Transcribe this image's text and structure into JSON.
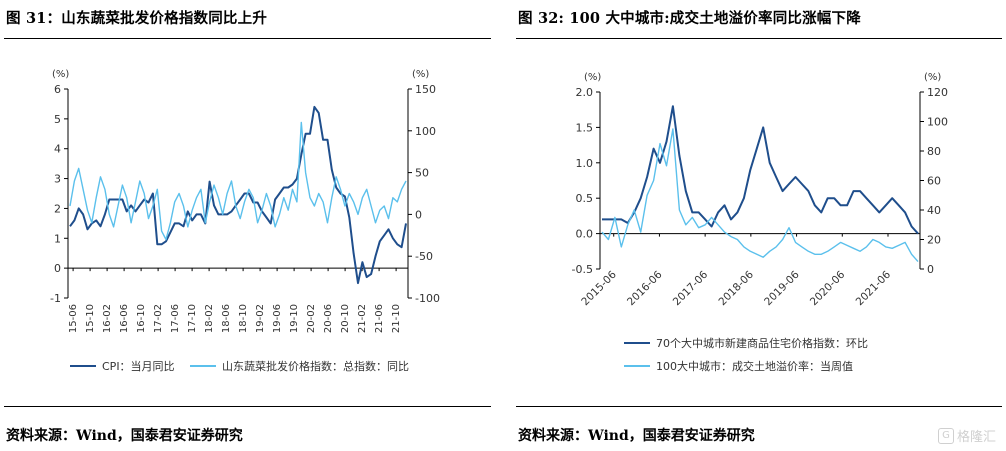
{
  "left": {
    "figure_title": "图 31：山东蔬菜批发价格指数同比上升",
    "source": "资料来源：Wind，国泰君安证券研究"
  },
  "right": {
    "figure_title": "图 32: 100 大中城市:成交土地溢价率同比涨幅下降",
    "source": "资料来源：Wind，国泰君安证券研究"
  },
  "watermark": {
    "text": "格隆汇",
    "icon": "gelonghui-logo-icon"
  },
  "colors": {
    "dark_series": "#1f4e8c",
    "light_series": "#5bc0ec"
  },
  "chart_data": [
    {
      "type": "line",
      "left_axis": {
        "unit": "(%)",
        "ylim": [
          -1,
          6
        ],
        "ticks": [
          "-1",
          "0",
          "1",
          "2",
          "3",
          "4",
          "5",
          "6"
        ]
      },
      "right_axis": {
        "unit": "(%)",
        "ylim": [
          -100,
          150
        ],
        "ticks": [
          "-100",
          "-50",
          "0",
          "50",
          "100",
          "150"
        ]
      },
      "x_ticks": [
        "15-06",
        "15-10",
        "16-02",
        "16-06",
        "16-10",
        "17-02",
        "17-06",
        "17-10",
        "18-02",
        "18-06",
        "18-10",
        "19-02",
        "19-06",
        "19-10",
        "20-02",
        "20-06",
        "20-10",
        "21-02",
        "21-06",
        "21-10"
      ],
      "series": [
        {
          "name": "CPI：当月同比",
          "axis": "left",
          "color": "#1f4e8c",
          "values": [
            1.4,
            1.6,
            2.0,
            1.8,
            1.3,
            1.5,
            1.6,
            1.4,
            1.8,
            2.3,
            2.3,
            2.3,
            2.3,
            1.9,
            2.1,
            1.9,
            2.1,
            2.3,
            2.2,
            2.5,
            0.8,
            0.8,
            0.9,
            1.2,
            1.5,
            1.5,
            1.4,
            1.9,
            1.6,
            1.8,
            1.8,
            1.5,
            2.9,
            2.1,
            1.8,
            1.8,
            1.8,
            1.9,
            2.1,
            2.3,
            2.5,
            2.5,
            2.2,
            2.2,
            1.9,
            1.7,
            1.5,
            2.3,
            2.5,
            2.7,
            2.7,
            2.8,
            3.0,
            3.8,
            4.5,
            4.5,
            5.4,
            5.2,
            4.3,
            4.3,
            3.3,
            2.7,
            2.5,
            2.4,
            1.7,
            0.5,
            -0.5,
            0.2,
            -0.3,
            -0.2,
            0.4,
            0.9,
            1.1,
            1.3,
            1.0,
            0.8,
            0.7,
            1.5
          ]
        },
        {
          "name": "山东蔬菜批发价格指数：总指数：同比",
          "axis": "right",
          "color": "#5bc0ec",
          "values": [
            10,
            40,
            55,
            30,
            5,
            -10,
            20,
            45,
            30,
            0,
            -15,
            10,
            35,
            20,
            -10,
            15,
            40,
            25,
            -5,
            10,
            30,
            -20,
            -30,
            -10,
            15,
            25,
            10,
            -15,
            5,
            20,
            30,
            -10,
            15,
            35,
            20,
            0,
            25,
            40,
            10,
            -5,
            15,
            30,
            20,
            -10,
            5,
            25,
            10,
            -15,
            0,
            20,
            5,
            30,
            15,
            110,
            50,
            20,
            10,
            25,
            15,
            -10,
            20,
            45,
            30,
            10,
            25,
            15,
            0,
            20,
            30,
            10,
            -10,
            5,
            10,
            -5,
            20,
            15,
            30,
            40
          ]
        }
      ]
    },
    {
      "type": "line",
      "left_axis": {
        "unit": "(%)",
        "ylim": [
          -0.5,
          2.0
        ],
        "ticks": [
          "-0.5",
          "0.0",
          "0.5",
          "1.0",
          "1.5",
          "2.0"
        ]
      },
      "right_axis": {
        "unit": "(%)",
        "ylim": [
          0,
          120
        ],
        "ticks": [
          "0",
          "20",
          "40",
          "60",
          "80",
          "100",
          "120"
        ]
      },
      "x_ticks": [
        "2015-06",
        "2016-06",
        "2017-06",
        "2018-06",
        "2019-06",
        "2020-06",
        "2021-06"
      ],
      "series": [
        {
          "name": "70个大中城市新建商品住宅价格指数：环比",
          "axis": "left",
          "color": "#1f4e8c",
          "values": [
            0.2,
            0.2,
            0.2,
            0.2,
            0.15,
            0.3,
            0.5,
            0.8,
            1.2,
            1.0,
            1.3,
            1.8,
            1.1,
            0.6,
            0.3,
            0.3,
            0.2,
            0.1,
            0.3,
            0.4,
            0.2,
            0.3,
            0.5,
            0.9,
            1.2,
            1.5,
            1.0,
            0.8,
            0.6,
            0.7,
            0.8,
            0.7,
            0.6,
            0.4,
            0.3,
            0.5,
            0.5,
            0.4,
            0.4,
            0.6,
            0.6,
            0.5,
            0.4,
            0.3,
            0.4,
            0.5,
            0.4,
            0.3,
            0.1,
            0.0
          ]
        },
        {
          "name": "100大中城市：成交土地溢价率：当周值",
          "axis": "right",
          "color": "#5bc0ec",
          "values": [
            25,
            20,
            35,
            15,
            30,
            40,
            25,
            50,
            60,
            85,
            70,
            95,
            40,
            30,
            35,
            28,
            30,
            35,
            30,
            25,
            22,
            20,
            15,
            12,
            10,
            8,
            12,
            15,
            20,
            28,
            18,
            15,
            12,
            10,
            10,
            12,
            15,
            18,
            16,
            14,
            12,
            15,
            20,
            18,
            15,
            14,
            16,
            18,
            10,
            5
          ]
        }
      ]
    }
  ]
}
